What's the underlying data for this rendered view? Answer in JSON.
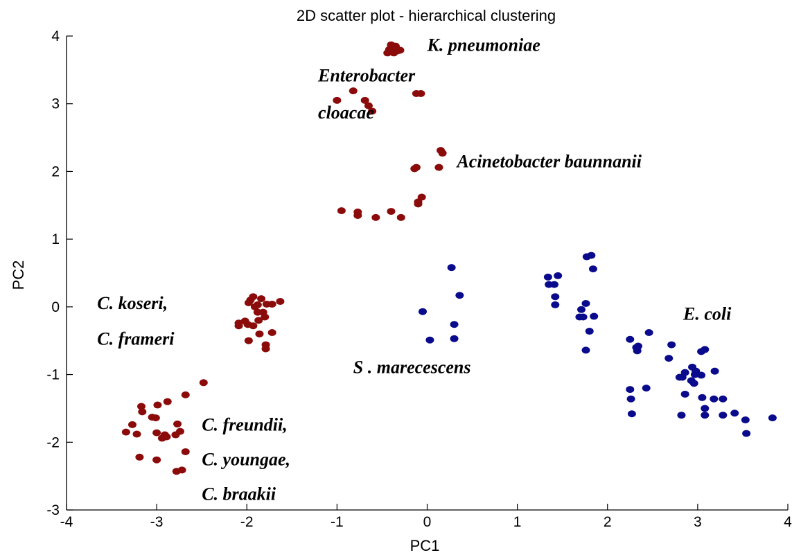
{
  "chart_data": {
    "type": "scatter",
    "title": "2D scatter plot - hierarchical clustering",
    "xlabel": "PC1",
    "ylabel": "PC2",
    "xlim": [
      -4,
      4
    ],
    "ylim": [
      -3,
      4
    ],
    "xticks": [
      "-4",
      "-3",
      "-2",
      "-1",
      "0",
      "1",
      "2",
      "3",
      "4"
    ],
    "yticks": [
      "-3",
      "-2",
      "-1",
      "0",
      "1",
      "2",
      "3",
      "4"
    ],
    "grid": false,
    "annotations": [
      {
        "text": "K. pneumoniae",
        "x": 0.0,
        "y": 3.78
      },
      {
        "text": "Enterobacter",
        "x": -1.21,
        "y": 3.33
      },
      {
        "text": "cloacae",
        "x": -1.21,
        "y": 2.78
      },
      {
        "text": "Acinetobacter baunnanii",
        "x": 0.33,
        "y": 2.06
      },
      {
        "text": "C. koseri,",
        "x": -3.66,
        "y": -0.03
      },
      {
        "text": "C. frameri",
        "x": -3.66,
        "y": -0.56
      },
      {
        "text": "S . marecescens",
        "x": -0.82,
        "y": -0.98
      },
      {
        "text": "E. coli",
        "x": 2.84,
        "y": -0.19
      },
      {
        "text": "C. freundii,",
        "x": -2.5,
        "y": -1.83
      },
      {
        "text": "C. youngae,",
        "x": -2.5,
        "y": -2.34
      },
      {
        "text": "C. braakii",
        "x": -2.5,
        "y": -2.85
      }
    ],
    "series": [
      {
        "color": "#8b0a0a",
        "x": [
          -0.4,
          -0.35,
          -0.3,
          -0.37,
          -0.42,
          -0.44,
          -0.39,
          -0.33,
          -1.0,
          -0.82,
          -0.69,
          -0.65,
          -0.61,
          -0.12,
          -0.07,
          0.15,
          0.17,
          -0.14,
          -0.12,
          0.13,
          -0.1,
          -0.1,
          -0.06,
          -0.95,
          -0.77,
          -0.77,
          -0.57,
          -0.4,
          -0.29,
          -1.98,
          -1.96,
          -1.93,
          -1.84,
          -1.88,
          -1.78,
          -1.91,
          -1.88,
          -1.82,
          -1.72,
          -1.63,
          -2.02,
          -2.09,
          -2.09,
          -1.99,
          -1.93,
          -1.87,
          -1.8,
          -1.72,
          -1.98,
          -1.86,
          -1.79,
          -1.79,
          -2.48,
          -2.68,
          -2.88,
          -2.99,
          -3.17,
          -3.16,
          -3.05,
          -3.01,
          -3.27,
          -3.34,
          -3.22,
          -3.0,
          -2.91,
          -2.94,
          -2.89,
          -2.77,
          -2.74,
          -2.79,
          -3.19,
          -3.0,
          -2.68,
          -2.78,
          -2.72
        ],
        "y": [
          3.87,
          3.85,
          3.79,
          3.75,
          3.8,
          3.75,
          3.82,
          3.78,
          3.05,
          3.19,
          3.05,
          2.97,
          2.89,
          3.15,
          3.15,
          2.31,
          2.27,
          2.04,
          2.06,
          2.06,
          1.52,
          1.55,
          1.62,
          1.42,
          1.4,
          1.35,
          1.32,
          1.41,
          1.32,
          0.06,
          0.1,
          0.15,
          0.12,
          0.03,
          0.04,
          0.0,
          -0.08,
          -0.08,
          0.04,
          0.08,
          -0.21,
          -0.24,
          -0.28,
          -0.26,
          -0.28,
          -0.2,
          -0.15,
          -0.38,
          -0.5,
          -0.4,
          -0.56,
          -0.62,
          -1.12,
          -1.3,
          -1.4,
          -1.45,
          -1.47,
          -1.55,
          -1.63,
          -1.64,
          -1.74,
          -1.85,
          -1.88,
          -1.86,
          -1.89,
          -1.94,
          -1.92,
          -1.73,
          -1.84,
          -1.89,
          -2.22,
          -2.26,
          -2.14,
          -2.43,
          -2.41
        ]
      },
      {
        "color": "#0a0a8c",
        "x": [
          0.27,
          0.36,
          -0.05,
          0.3,
          0.03,
          0.3,
          1.34,
          1.45,
          1.35,
          1.41,
          1.42,
          1.42,
          1.77,
          1.82,
          1.84,
          1.71,
          1.76,
          1.73,
          1.69,
          1.85,
          1.8,
          1.76,
          2.25,
          2.46,
          2.34,
          2.32,
          2.33,
          2.25,
          2.43,
          2.26,
          2.27,
          2.71,
          2.68,
          2.94,
          2.98,
          3.04,
          3.08,
          2.97,
          3.19,
          2.86,
          2.83,
          2.93,
          2.96,
          3.04,
          2.98,
          2.8,
          2.86,
          3.05,
          3.18,
          3.28,
          3.08,
          3.08,
          3.28,
          3.41,
          3.53,
          3.54,
          3.83,
          2.82
        ],
        "y": [
          0.58,
          0.17,
          -0.07,
          -0.26,
          -0.49,
          -0.47,
          0.44,
          0.46,
          0.33,
          0.33,
          0.15,
          0.03,
          0.74,
          0.76,
          0.56,
          -0.04,
          0.05,
          -0.15,
          -0.15,
          -0.14,
          -0.36,
          -0.64,
          -0.48,
          -0.38,
          -0.58,
          -0.6,
          -0.65,
          -1.22,
          -1.2,
          -1.36,
          -1.58,
          -0.56,
          -0.76,
          -0.89,
          -0.95,
          -0.66,
          -0.63,
          -1.0,
          -0.95,
          -0.97,
          -1.04,
          -1.09,
          -1.13,
          -1.01,
          -0.96,
          -1.04,
          -1.29,
          -1.34,
          -1.36,
          -1.36,
          -1.5,
          -1.6,
          -1.6,
          -1.57,
          -1.67,
          -1.87,
          -1.64,
          -1.6
        ]
      }
    ]
  }
}
